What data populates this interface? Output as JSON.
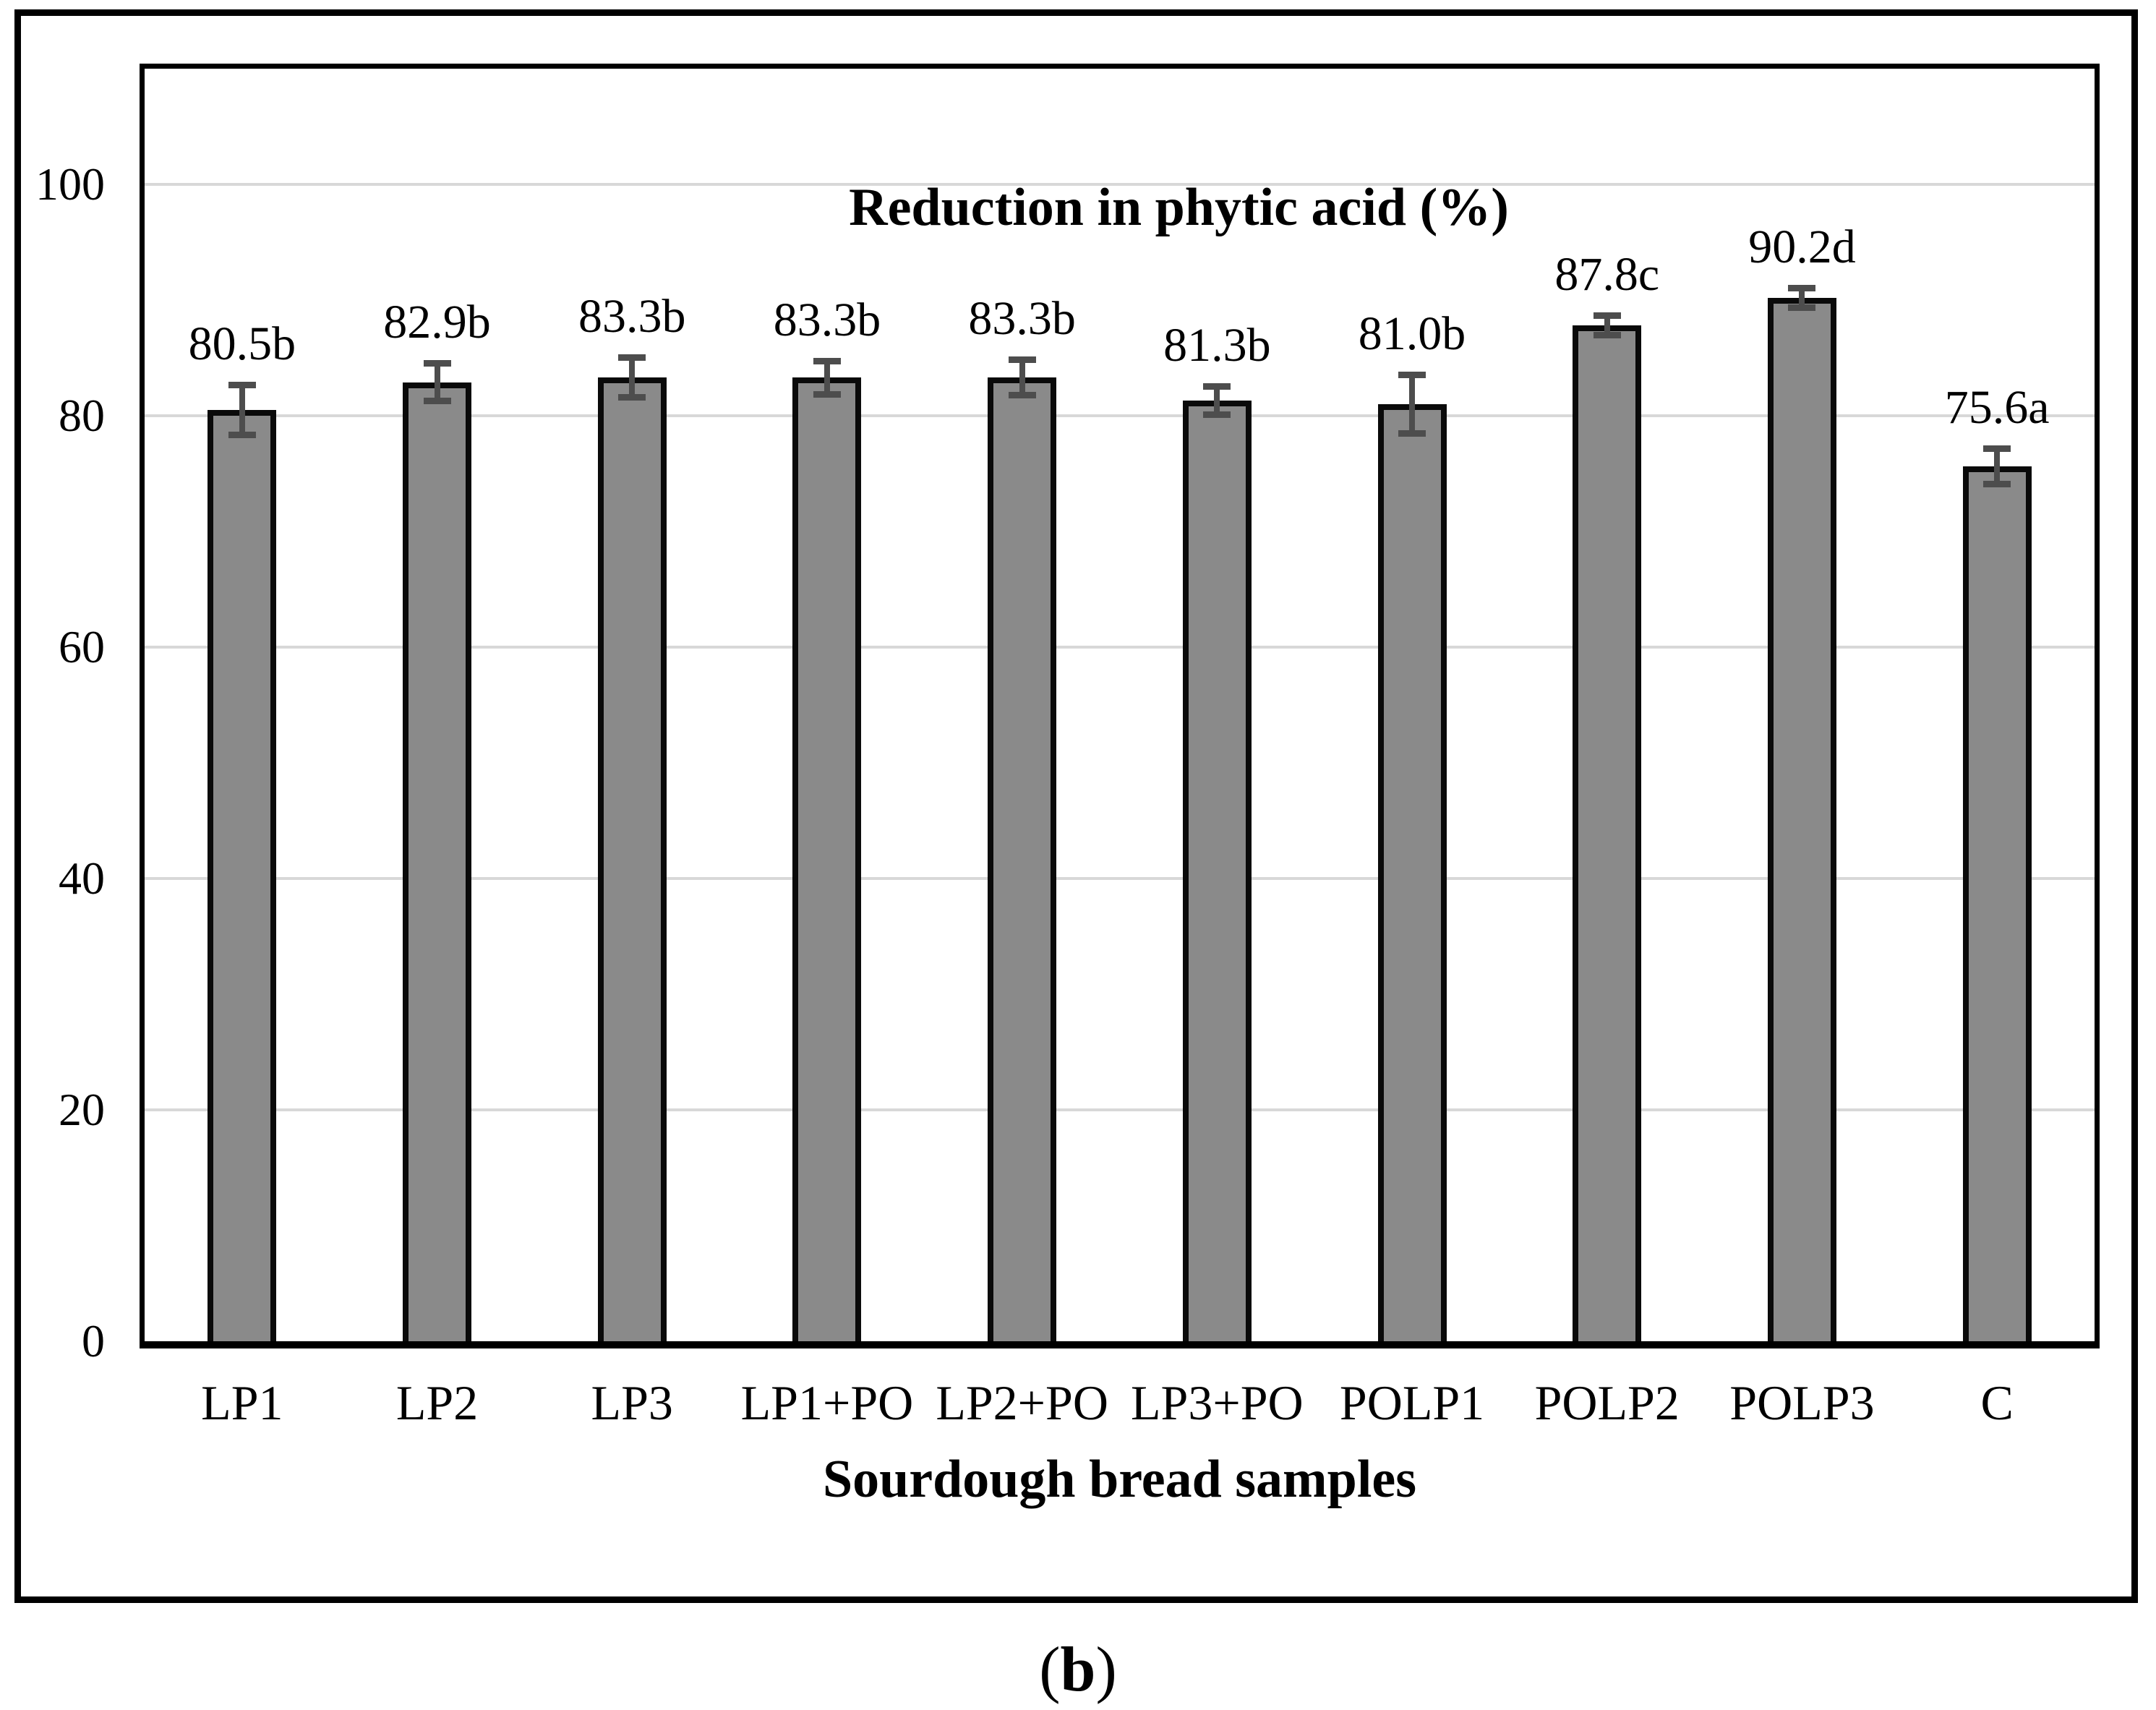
{
  "figure": {
    "caption": {
      "prefix": "(",
      "letter": "b",
      "suffix": ")"
    },
    "colors": {
      "bar_fill": "#8a8a8a",
      "bar_border": "#0a0a0a",
      "error_bar": "#4d4d4d",
      "gridline": "#d8d8d8",
      "frame": "#000000",
      "text": "#000000",
      "background": "#ffffff"
    }
  },
  "chart_data": {
    "type": "bar",
    "title": "Reduction in phytic acid (%)",
    "xlabel": "Sourdough bread samples",
    "ylabel": "",
    "ylim": [
      0,
      110
    ],
    "yticks": [
      0,
      20,
      40,
      60,
      80,
      100
    ],
    "grid": true,
    "legend": false,
    "categories": [
      "LP1",
      "LP2",
      "LP3",
      "LP1+PO",
      "LP2+PO",
      "LP3+PO",
      "POLP1",
      "POLP2",
      "POLP3",
      "C"
    ],
    "values": [
      80.5,
      82.9,
      83.3,
      83.3,
      83.3,
      81.3,
      81.0,
      87.8,
      90.2,
      75.6
    ],
    "bar_labels": [
      "80.5b",
      "82.9b",
      "83.3b",
      "83.3b",
      "83.3b",
      "81.3b",
      "81.0b",
      "87.8c",
      "90.2d",
      "75.6a"
    ],
    "errors": [
      2.1,
      1.6,
      1.7,
      1.4,
      1.5,
      1.2,
      2.5,
      0.8,
      0.8,
      1.5
    ]
  }
}
